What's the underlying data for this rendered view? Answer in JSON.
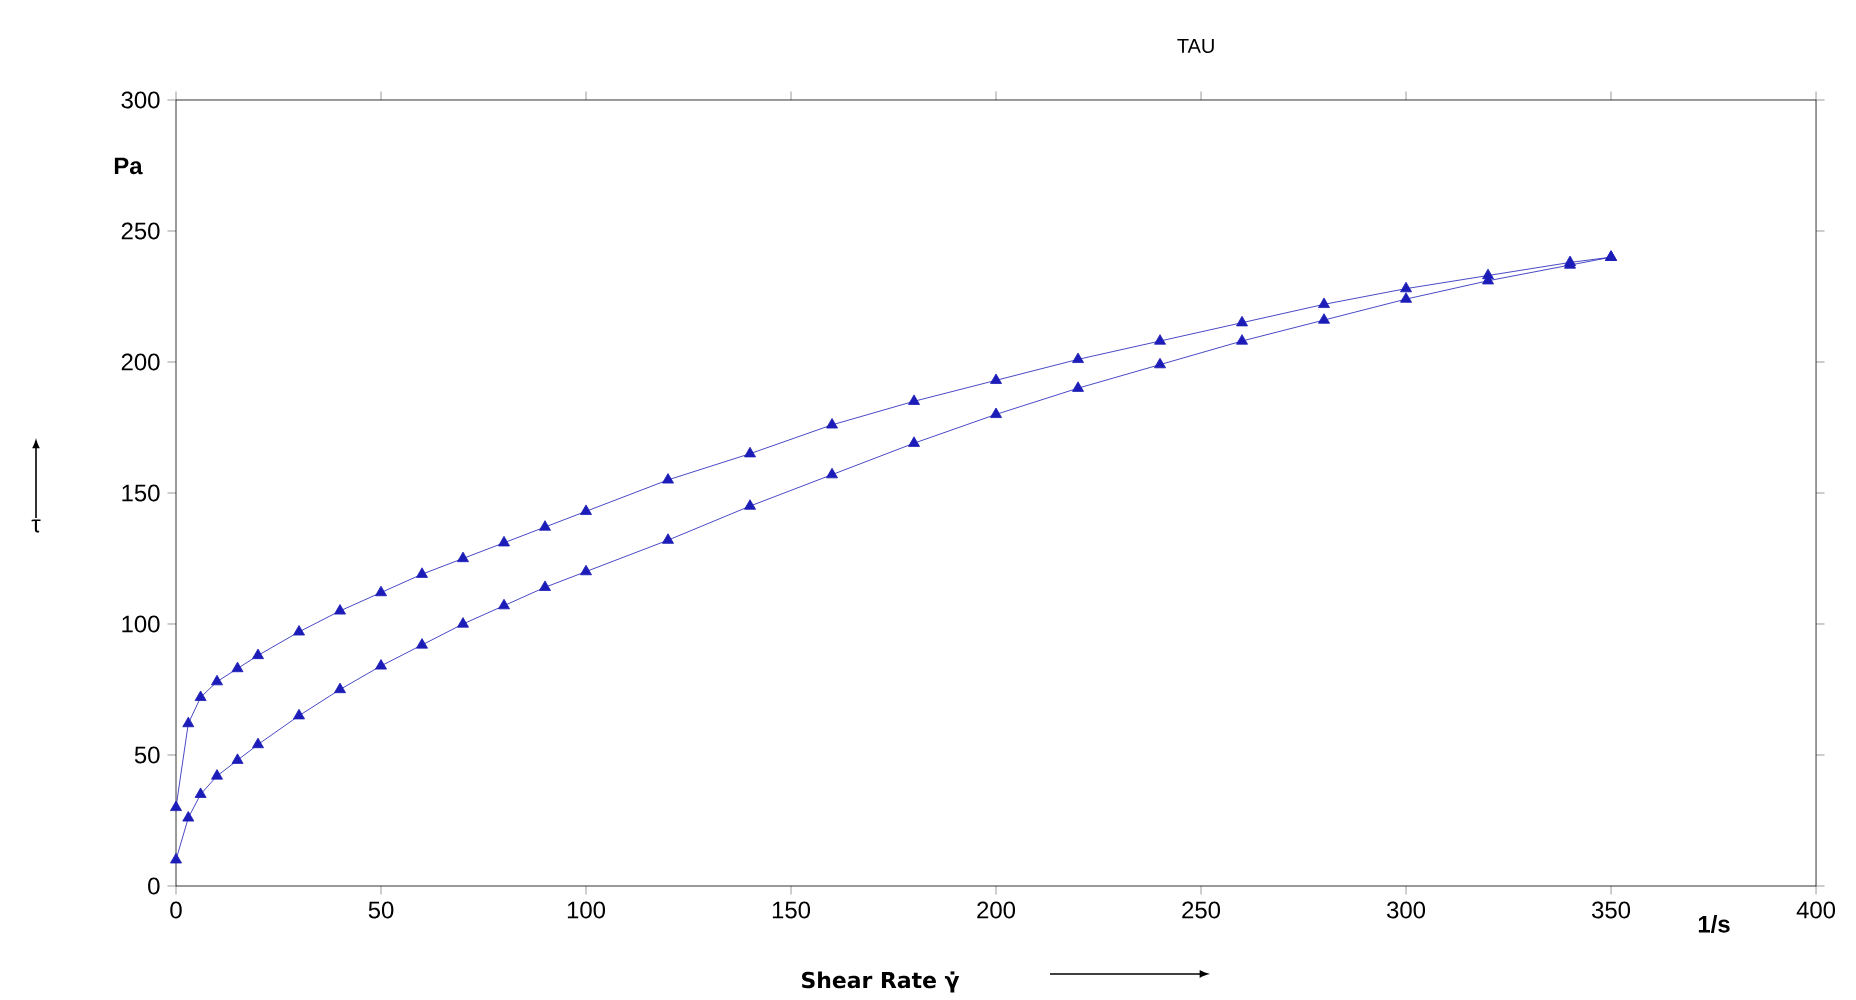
{
  "chart_data": {
    "type": "line",
    "title": "TAU",
    "xlabel": "**Shear Rate γ̇**",
    "ylabel": "τ",
    "xlim": [
      0,
      400
    ],
    "ylim": [
      0,
      300
    ],
    "xticks": [
      0,
      50,
      100,
      150,
      200,
      250,
      300,
      350,
      400
    ],
    "yticks": [
      0,
      50,
      100,
      150,
      200,
      250,
      300
    ],
    "annotations": [
      "**1/s**",
      "**Pa**"
    ],
    "marker": "triangle",
    "series": [
      {
        "color": "#1c1cb8",
        "x": [
          0,
          3,
          6,
          10,
          15,
          20,
          30,
          40,
          50,
          60,
          70,
          80,
          90,
          100,
          120,
          140,
          160,
          180,
          200,
          220,
          240,
          260,
          280,
          300,
          320,
          340,
          350
        ],
        "values": [
          10,
          26,
          35,
          42,
          48,
          54,
          65,
          75,
          84,
          92,
          100,
          107,
          114,
          120,
          132,
          145,
          157,
          169,
          180,
          190,
          199,
          208,
          216,
          224,
          231,
          237,
          240
        ]
      },
      {
        "color": "#1c1cb8",
        "x": [
          0,
          3,
          6,
          10,
          15,
          20,
          30,
          40,
          50,
          60,
          70,
          80,
          90,
          100,
          120,
          140,
          160,
          180,
          200,
          220,
          240,
          260,
          280,
          300,
          320,
          340,
          350
        ],
        "values": [
          30,
          62,
          72,
          78,
          83,
          88,
          97,
          105,
          112,
          119,
          125,
          131,
          137,
          143,
          155,
          165,
          176,
          185,
          193,
          201,
          208,
          215,
          222,
          228,
          233,
          238,
          240
        ]
      }
    ]
  }
}
